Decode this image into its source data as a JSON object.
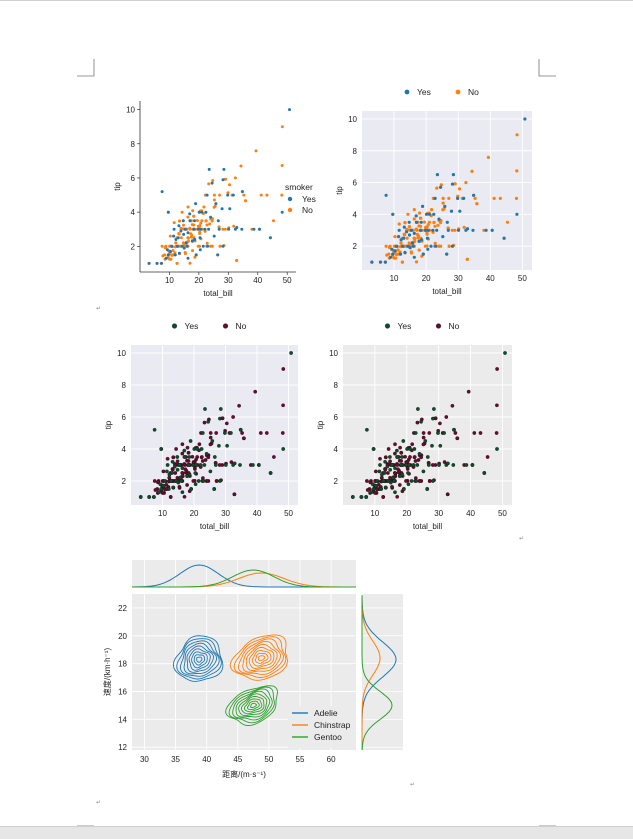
{
  "colors": {
    "yes_p1": "#1f77b4",
    "no_p1": "#ff7f0e",
    "yes_dark": "#0b4d2c",
    "no_dark": "#6a0a2e",
    "adelie": "#1f77b4",
    "chinstrap": "#ff7f0e",
    "gentoo": "#2ca02c",
    "darkgrid_bg": "#eaeaf2",
    "ggplot_bg": "#ebebeb"
  },
  "paragraph_marks": [
    "↵",
    "↵",
    "↵",
    "↵"
  ],
  "chart_data": [
    {
      "id": "p1",
      "type": "scatter",
      "style": "white",
      "xlabel": "total_bill",
      "ylabel": "tip",
      "xlim": [
        0,
        53
      ],
      "ylim": [
        0.5,
        10.5
      ],
      "xticks": [
        10,
        20,
        30,
        40,
        50
      ],
      "yticks": [
        2,
        4,
        6,
        8,
        10
      ],
      "legend": {
        "title": "smoker",
        "placement": "center-right",
        "labels": [
          "Yes",
          "No"
        ]
      },
      "series": [
        "Yes",
        "No"
      ]
    },
    {
      "id": "p2",
      "type": "scatter",
      "style": "darkgrid",
      "xlabel": "total_bill",
      "ylabel": "tip",
      "xlim": [
        0,
        53
      ],
      "ylim": [
        0.5,
        10.5
      ],
      "xticks": [
        10,
        20,
        30,
        40,
        50
      ],
      "yticks": [
        2,
        4,
        6,
        8,
        10
      ],
      "legend": {
        "title": "",
        "placement": "top",
        "labels": [
          "Yes",
          "No"
        ]
      },
      "series": [
        "Yes",
        "No"
      ]
    },
    {
      "id": "p3",
      "type": "scatter",
      "style": "darkgrid",
      "xlabel": "total_bill",
      "ylabel": "tip",
      "xlim": [
        0,
        53
      ],
      "ylim": [
        0.5,
        10.5
      ],
      "xticks": [
        10,
        20,
        30,
        40,
        50
      ],
      "yticks": [
        2,
        4,
        6,
        8,
        10
      ],
      "legend": {
        "title": "",
        "placement": "top",
        "labels": [
          "Yes",
          "No"
        ]
      },
      "series": [
        "Yes",
        "No"
      ]
    },
    {
      "id": "p4",
      "type": "scatter",
      "style": "grey",
      "xlabel": "total_bill",
      "ylabel": "tip",
      "xlim": [
        0,
        53
      ],
      "ylim": [
        0.5,
        10.5
      ],
      "xticks": [
        10,
        20,
        30,
        40,
        50
      ],
      "yticks": [
        2,
        4,
        6,
        8,
        10
      ],
      "legend": {
        "title": "",
        "placement": "top",
        "labels": [
          "Yes",
          "No"
        ]
      },
      "series": [
        "Yes",
        "No"
      ]
    },
    {
      "id": "p5",
      "type": "kde-joint",
      "xlabel": "距离/(m·s⁻¹)",
      "ylabel": "速度/(km·h⁻¹)",
      "xlim": [
        28,
        64
      ],
      "ylim": [
        11.8,
        23
      ],
      "xticks": [
        30,
        35,
        40,
        45,
        50,
        55,
        60
      ],
      "yticks": [
        12,
        14,
        16,
        18,
        20,
        22
      ],
      "legend": {
        "placement": "bottom-right",
        "labels": [
          "Adelie",
          "Chinstrap",
          "Gentoo"
        ]
      },
      "series": [
        {
          "name": "Adelie",
          "center": [
            38.8,
            18.3
          ],
          "spread": [
            2.8,
            1.2
          ]
        },
        {
          "name": "Chinstrap",
          "center": [
            48.8,
            18.4
          ],
          "spread": [
            3.3,
            1.15
          ]
        },
        {
          "name": "Gentoo",
          "center": [
            47.5,
            15.0
          ],
          "spread": [
            3.0,
            0.95
          ]
        }
      ]
    }
  ],
  "scatter_points": {
    "Yes": [
      [
        3.1,
        1.0
      ],
      [
        7.3,
        1.0
      ],
      [
        5.8,
        1.0
      ],
      [
        9.6,
        1.5
      ],
      [
        10.3,
        1.7
      ],
      [
        13.4,
        1.6
      ],
      [
        12.7,
        2.0
      ],
      [
        14.3,
        2.0
      ],
      [
        15.0,
        1.9
      ],
      [
        16.0,
        2.0
      ],
      [
        15.7,
        2.2
      ],
      [
        17.8,
        2.3
      ],
      [
        18.6,
        2.4
      ],
      [
        13.0,
        2.5
      ],
      [
        12.2,
        2.4
      ],
      [
        14.8,
        2.7
      ],
      [
        16.3,
        2.8
      ],
      [
        18.3,
        3.0
      ],
      [
        19.8,
        3.0
      ],
      [
        20.7,
        3.0
      ],
      [
        22.1,
        3.0
      ],
      [
        23.3,
        3.0
      ],
      [
        25.2,
        2.6
      ],
      [
        26.9,
        3.0
      ],
      [
        28.2,
        2.0
      ],
      [
        30.1,
        3.0
      ],
      [
        32.4,
        3.0
      ],
      [
        34.6,
        3.0
      ],
      [
        40.6,
        3.0
      ],
      [
        38.7,
        3.0
      ],
      [
        44.3,
        2.5
      ],
      [
        48.3,
        4.0
      ],
      [
        50.8,
        10.0
      ],
      [
        17.0,
        3.5
      ],
      [
        18.5,
        3.5
      ],
      [
        20.1,
        4.0
      ],
      [
        21.0,
        4.0
      ],
      [
        22.4,
        4.0
      ],
      [
        24.0,
        3.7
      ],
      [
        26.6,
        3.5
      ],
      [
        27.9,
        4.2
      ],
      [
        29.8,
        5.0
      ],
      [
        31.7,
        5.0
      ],
      [
        34.8,
        5.2
      ],
      [
        24.5,
        5.7
      ],
      [
        28.5,
        6.5
      ],
      [
        23.5,
        6.5
      ],
      [
        28.2,
        5.9
      ],
      [
        30.5,
        4.2
      ],
      [
        32.9,
        3.1
      ],
      [
        7.5,
        5.2
      ],
      [
        9.6,
        4.0
      ],
      [
        11.6,
        3.0
      ],
      [
        13.2,
        3.2
      ],
      [
        15.4,
        3.0
      ],
      [
        16.9,
        3.9
      ],
      [
        19.1,
        1.5
      ],
      [
        20.5,
        1.8
      ],
      [
        21.5,
        2.0
      ],
      [
        12.0,
        1.5
      ],
      [
        10.8,
        2.0
      ],
      [
        9.3,
        1.8
      ],
      [
        23.0,
        2.0
      ],
      [
        26.4,
        1.5
      ],
      [
        16.3,
        1.3
      ],
      [
        18.9,
        4.5
      ],
      [
        14.7,
        3.5
      ],
      [
        25.8,
        4.5
      ],
      [
        22.8,
        5.0
      ],
      [
        20.4,
        2.5
      ],
      [
        8.9,
        1.3
      ],
      [
        11.4,
        2.6
      ],
      [
        13.9,
        2.9
      ]
    ],
    "No": [
      [
        16.99,
        1.01
      ],
      [
        10.34,
        1.66
      ],
      [
        21.01,
        3.5
      ],
      [
        23.68,
        3.31
      ],
      [
        24.59,
        3.61
      ],
      [
        25.29,
        4.71
      ],
      [
        8.77,
        2.0
      ],
      [
        26.88,
        3.12
      ],
      [
        15.04,
        1.96
      ],
      [
        14.78,
        3.23
      ],
      [
        10.27,
        1.71
      ],
      [
        35.26,
        5.0
      ],
      [
        15.42,
        1.57
      ],
      [
        18.43,
        3.0
      ],
      [
        14.83,
        3.02
      ],
      [
        21.58,
        3.92
      ],
      [
        10.33,
        1.67
      ],
      [
        16.29,
        3.71
      ],
      [
        16.97,
        3.5
      ],
      [
        20.65,
        3.35
      ],
      [
        17.92,
        4.08
      ],
      [
        20.29,
        2.75
      ],
      [
        15.77,
        2.23
      ],
      [
        39.42,
        7.58
      ],
      [
        19.82,
        3.18
      ],
      [
        17.81,
        2.34
      ],
      [
        13.37,
        2.0
      ],
      [
        12.69,
        2.0
      ],
      [
        21.7,
        4.3
      ],
      [
        19.65,
        3.0
      ],
      [
        9.55,
        1.45
      ],
      [
        18.35,
        2.5
      ],
      [
        15.06,
        3.0
      ],
      [
        20.69,
        2.45
      ],
      [
        17.78,
        3.27
      ],
      [
        24.06,
        3.6
      ],
      [
        16.31,
        2.0
      ],
      [
        16.93,
        3.07
      ],
      [
        18.69,
        2.31
      ],
      [
        31.27,
        5.0
      ],
      [
        16.04,
        2.24
      ],
      [
        17.46,
        2.54
      ],
      [
        13.94,
        3.06
      ],
      [
        9.68,
        1.32
      ],
      [
        30.4,
        5.6
      ],
      [
        18.29,
        3.0
      ],
      [
        22.23,
        5.0
      ],
      [
        32.4,
        6.0
      ],
      [
        28.55,
        2.05
      ],
      [
        18.04,
        3.0
      ],
      [
        12.54,
        2.5
      ],
      [
        10.29,
        2.6
      ],
      [
        34.81,
        5.2
      ],
      [
        9.94,
        1.56
      ],
      [
        25.56,
        4.34
      ],
      [
        19.49,
        3.51
      ],
      [
        38.01,
        3.0
      ],
      [
        26.41,
        1.5
      ],
      [
        11.24,
        1.76
      ],
      [
        48.27,
        6.73
      ],
      [
        20.29,
        3.21
      ],
      [
        13.81,
        2.0
      ],
      [
        11.02,
        1.98
      ],
      [
        18.29,
        3.76
      ],
      [
        17.59,
        2.64
      ],
      [
        20.08,
        3.15
      ],
      [
        16.45,
        2.47
      ],
      [
        3.07,
        1.0
      ],
      [
        20.23,
        2.01
      ],
      [
        15.01,
        2.09
      ],
      [
        12.02,
        1.97
      ],
      [
        17.07,
        3.0
      ],
      [
        26.86,
        3.14
      ],
      [
        25.28,
        5.0
      ],
      [
        14.73,
        2.2
      ],
      [
        10.51,
        1.25
      ],
      [
        44.3,
        2.5
      ],
      [
        22.42,
        3.48
      ],
      [
        20.92,
        4.08
      ],
      [
        15.36,
        1.64
      ],
      [
        20.49,
        4.06
      ],
      [
        25.21,
        4.29
      ],
      [
        18.24,
        3.76
      ],
      [
        14.31,
        4.0
      ],
      [
        14.0,
        3.0
      ],
      [
        7.25,
        1.0
      ],
      [
        48.17,
        5.0
      ],
      [
        29.85,
        5.14
      ],
      [
        48.33,
        9.0
      ],
      [
        27.18,
        2.0
      ],
      [
        22.82,
        2.18
      ],
      [
        19.08,
        1.5
      ],
      [
        20.27,
        2.83
      ],
      [
        11.17,
        1.5
      ],
      [
        12.26,
        2.0
      ],
      [
        18.26,
        3.25
      ],
      [
        8.51,
        1.25
      ],
      [
        10.33,
        2.0
      ],
      [
        14.15,
        2.0
      ],
      [
        16.0,
        2.0
      ],
      [
        13.16,
        2.75
      ],
      [
        17.47,
        3.5
      ],
      [
        34.3,
        6.7
      ],
      [
        41.19,
        5.0
      ],
      [
        27.05,
        5.0
      ],
      [
        16.43,
        2.3
      ],
      [
        8.35,
        1.5
      ],
      [
        18.64,
        1.36
      ],
      [
        11.87,
        1.63
      ],
      [
        9.78,
        1.73
      ],
      [
        7.51,
        2.0
      ],
      [
        14.07,
        2.5
      ],
      [
        13.13,
        2.0
      ],
      [
        17.26,
        2.74
      ],
      [
        24.55,
        2.0
      ],
      [
        19.77,
        2.0
      ],
      [
        29.03,
        5.92
      ],
      [
        40.55,
        3.0
      ],
      [
        9.6,
        4.0
      ],
      [
        24.71,
        5.85
      ],
      [
        21.16,
        3.0
      ],
      [
        28.97,
        3.0
      ],
      [
        22.49,
        3.5
      ],
      [
        5.75,
        1.0
      ],
      [
        16.32,
        4.3
      ],
      [
        22.75,
        3.25
      ],
      [
        12.6,
        1.0
      ],
      [
        32.83,
        1.17
      ],
      [
        35.83,
        4.67
      ],
      [
        31.85,
        3.18
      ],
      [
        24.52,
        3.48
      ],
      [
        43.11,
        5.0
      ],
      [
        13.0,
        2.0
      ],
      [
        12.16,
        2.2
      ],
      [
        13.42,
        1.58
      ],
      [
        8.58,
        1.92
      ],
      [
        15.98,
        3.0
      ],
      [
        13.42,
        3.48
      ],
      [
        16.27,
        2.5
      ],
      [
        10.09,
        2.0
      ],
      [
        20.45,
        3.0
      ],
      [
        13.28,
        2.72
      ],
      [
        22.12,
        2.88
      ],
      [
        24.01,
        2.0
      ],
      [
        15.69,
        3.0
      ],
      [
        11.61,
        3.39
      ],
      [
        10.77,
        1.47
      ],
      [
        15.53,
        3.0
      ],
      [
        10.07,
        1.25
      ],
      [
        12.6,
        1.0
      ],
      [
        32.83,
        1.17
      ],
      [
        35.83,
        4.67
      ],
      [
        29.03,
        5.92
      ],
      [
        27.18,
        2.0
      ],
      [
        22.67,
        2.0
      ],
      [
        17.82,
        1.75
      ],
      [
        18.78,
        3.0
      ],
      [
        45.35,
        3.5
      ],
      [
        23.33,
        5.65
      ],
      [
        28.15,
        3.0
      ],
      [
        11.59,
        1.5
      ],
      [
        7.74,
        1.44
      ],
      [
        30.14,
        3.09
      ],
      [
        12.16,
        2.2
      ],
      [
        13.42,
        3.48
      ],
      [
        8.58,
        1.92
      ],
      [
        15.98,
        2.03
      ],
      [
        13.42,
        1.58
      ],
      [
        16.27,
        2.5
      ],
      [
        10.09,
        2.0
      ],
      [
        20.45,
        3.0
      ],
      [
        13.28,
        2.72
      ],
      [
        22.12,
        2.88
      ],
      [
        24.01,
        2.0
      ]
    ]
  }
}
